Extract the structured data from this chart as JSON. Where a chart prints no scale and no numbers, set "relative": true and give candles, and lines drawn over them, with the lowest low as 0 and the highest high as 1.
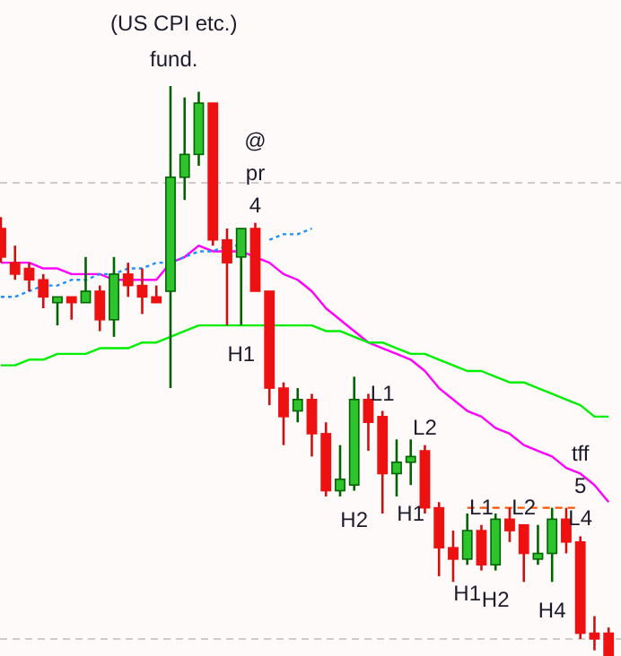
{
  "chart_data": {
    "type": "candlestick",
    "relative": true,
    "categories": [
      null,
      null,
      null,
      null,
      null,
      null,
      null,
      null,
      null,
      null,
      null,
      null,
      null,
      null,
      null,
      null,
      null,
      null,
      null,
      null,
      null,
      null,
      null,
      null,
      null,
      null,
      null,
      null,
      null,
      null,
      null,
      null,
      null,
      null,
      null,
      null,
      null,
      null,
      null,
      null,
      null,
      null,
      null,
      null
    ],
    "ohlc": [
      [
        0.75,
        0.77,
        0.69,
        0.7
      ],
      [
        0.69,
        0.72,
        0.66,
        0.67
      ],
      [
        0.68,
        0.69,
        0.64,
        0.66
      ],
      [
        0.66,
        0.67,
        0.61,
        0.63
      ],
      [
        0.62,
        0.63,
        0.58,
        0.63
      ],
      [
        0.63,
        0.63,
        0.59,
        0.62
      ],
      [
        0.62,
        0.7,
        0.62,
        0.64
      ],
      [
        0.64,
        0.65,
        0.57,
        0.59
      ],
      [
        0.59,
        0.7,
        0.56,
        0.67
      ],
      [
        0.67,
        0.69,
        0.63,
        0.65
      ],
      [
        0.65,
        0.68,
        0.6,
        0.63
      ],
      [
        0.63,
        0.65,
        0.62,
        0.62
      ],
      [
        0.64,
        1.0,
        0.47,
        0.84
      ],
      [
        0.84,
        0.98,
        0.8,
        0.88
      ],
      [
        0.88,
        0.99,
        0.86,
        0.97
      ],
      [
        0.97,
        0.97,
        0.72,
        0.73
      ],
      [
        0.73,
        0.75,
        0.58,
        0.69
      ],
      [
        0.7,
        0.75,
        0.58,
        0.75
      ],
      [
        0.75,
        0.76,
        0.64,
        0.64
      ],
      [
        0.64,
        0.64,
        0.44,
        0.47
      ],
      [
        0.47,
        0.48,
        0.37,
        0.42
      ],
      [
        0.43,
        0.47,
        0.41,
        0.45
      ],
      [
        0.45,
        0.46,
        0.35,
        0.39
      ],
      [
        0.39,
        0.41,
        0.28,
        0.29
      ],
      [
        0.29,
        0.37,
        0.28,
        0.31
      ],
      [
        0.3,
        0.49,
        0.29,
        0.45
      ],
      [
        0.45,
        0.46,
        0.36,
        0.41
      ],
      [
        0.42,
        0.43,
        0.25,
        0.32
      ],
      [
        0.32,
        0.38,
        0.28,
        0.34
      ],
      [
        0.34,
        0.38,
        0.3,
        0.35
      ],
      [
        0.36,
        0.37,
        0.25,
        0.26
      ],
      [
        0.26,
        0.27,
        0.14,
        0.19
      ],
      [
        0.19,
        0.22,
        0.13,
        0.17
      ],
      [
        0.17,
        0.25,
        0.16,
        0.22
      ],
      [
        0.22,
        0.23,
        0.15,
        0.16
      ],
      [
        0.16,
        0.25,
        0.15,
        0.24
      ],
      [
        0.24,
        0.26,
        0.2,
        0.22
      ],
      [
        0.23,
        0.23,
        0.13,
        0.18
      ],
      [
        0.17,
        0.23,
        0.16,
        0.18
      ],
      [
        0.18,
        0.26,
        0.13,
        0.24
      ],
      [
        0.24,
        0.26,
        0.18,
        0.2
      ],
      [
        0.2,
        0.21,
        0.03,
        0.04
      ],
      [
        0.04,
        0.07,
        0.01,
        0.03
      ],
      [
        0.04,
        0.05,
        0.0,
        0.0
      ]
    ],
    "value_labels": [
      null,
      null,
      null,
      null,
      null,
      null,
      null,
      null,
      null,
      null,
      null,
      null,
      null,
      null,
      null,
      null,
      null,
      "H1",
      "@\npr\n4",
      null,
      null,
      null,
      null,
      null,
      null,
      "H2",
      null,
      "L1",
      null,
      "H1",
      "L2",
      null,
      null,
      "H1",
      "L1",
      "H2",
      null,
      "L2",
      null,
      "H4",
      null,
      "tff\n5\nL4",
      null,
      null
    ],
    "series": [
      {
        "type": "line",
        "color": "#ff00ff",
        "values": [
          0.69,
          0.69,
          0.69,
          0.68,
          0.68,
          0.67,
          0.67,
          0.67,
          0.66,
          0.66,
          0.66,
          0.66,
          0.69,
          0.7,
          0.72,
          0.71,
          0.71,
          0.71,
          0.7,
          0.69,
          0.67,
          0.66,
          0.64,
          0.61,
          0.59,
          0.57,
          0.55,
          0.54,
          0.53,
          0.52,
          0.5,
          0.47,
          0.45,
          0.43,
          0.42,
          0.4,
          0.39,
          0.37,
          0.36,
          0.35,
          0.33,
          0.32,
          0.3,
          0.27
        ]
      },
      {
        "type": "line",
        "color": "#00ee00",
        "values": [
          0.51,
          0.51,
          0.52,
          0.52,
          0.53,
          0.53,
          0.53,
          0.54,
          0.54,
          0.54,
          0.55,
          0.55,
          0.56,
          0.57,
          0.58,
          0.58,
          0.58,
          0.58,
          0.58,
          0.58,
          0.58,
          0.58,
          0.58,
          0.57,
          0.57,
          0.56,
          0.55,
          0.55,
          0.54,
          0.53,
          0.53,
          0.52,
          0.51,
          0.5,
          0.5,
          0.49,
          0.48,
          0.48,
          0.47,
          0.46,
          0.45,
          0.44,
          0.42,
          0.42
        ]
      },
      {
        "type": "line",
        "color": "#1e90ff",
        "line_style": "dotted",
        "values": [
          0.63,
          0.63,
          0.64,
          0.65,
          0.65,
          0.66,
          0.66,
          0.67,
          0.67,
          0.68,
          0.68,
          0.69,
          0.69,
          0.7,
          0.71,
          0.71,
          0.72,
          0.72,
          null,
          0.73,
          0.74,
          0.74,
          0.75,
          null,
          null,
          null,
          null,
          null,
          null,
          null,
          null,
          null,
          null,
          null,
          null,
          null,
          null,
          null,
          null,
          null,
          null,
          null,
          null,
          null
        ]
      },
      {
        "type": "line",
        "color": "#ff5500",
        "line_style": "dashed",
        "values": [
          null,
          null,
          null,
          null,
          null,
          null,
          null,
          null,
          null,
          null,
          null,
          null,
          null,
          null,
          null,
          null,
          null,
          null,
          null,
          null,
          null,
          null,
          null,
          null,
          null,
          null,
          null,
          null,
          null,
          null,
          null,
          null,
          null,
          0.26,
          0.26,
          0.26,
          0.26,
          0.26,
          0.26,
          0.26,
          0.26,
          0.26,
          null,
          null
        ]
      }
    ],
    "ref_lines": [
      {
        "axis": "y",
        "value": 0.83,
        "color": "#cccccc",
        "line_style": "dashed"
      },
      {
        "axis": "y",
        "value": 0.03,
        "color": "#cccccc",
        "line_style": "dashed"
      }
    ],
    "annotations": [
      "(US CPI etc.)",
      "fund."
    ]
  }
}
